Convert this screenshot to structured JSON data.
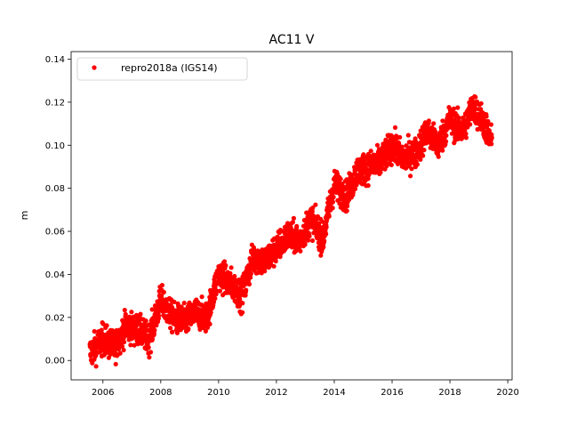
{
  "chart_data": {
    "type": "scatter",
    "title": "AC11 V",
    "xlabel": "",
    "ylabel": "m",
    "xlim": [
      2004.9,
      2020.15
    ],
    "ylim": [
      -0.009,
      0.1435
    ],
    "x_ticks": [
      2006,
      2008,
      2010,
      2012,
      2014,
      2016,
      2018,
      2020
    ],
    "x_tick_labels": [
      "2006",
      "2008",
      "2010",
      "2012",
      "2014",
      "2016",
      "2018",
      "2020"
    ],
    "y_ticks": [
      0.0,
      0.02,
      0.04,
      0.06,
      0.08,
      0.1,
      0.12,
      0.14
    ],
    "y_tick_labels": [
      "0.00",
      "0.02",
      "0.04",
      "0.06",
      "0.08",
      "0.10",
      "0.12",
      "0.14"
    ],
    "grid": false,
    "legend_position": "upper-left",
    "color": "#ff0000",
    "series": [
      {
        "name": "repro2018a (IGS14)",
        "x_range": [
          2005.55,
          2019.45
        ],
        "trend": {
          "x": [
            2005.6,
            2006.0,
            2006.4,
            2006.8,
            2007.2,
            2007.6,
            2008.0,
            2008.4,
            2008.8,
            2009.2,
            2009.6,
            2010.0,
            2010.4,
            2010.8,
            2011.2,
            2011.6,
            2012.0,
            2012.4,
            2012.8,
            2013.2,
            2013.6,
            2014.0,
            2014.4,
            2014.8,
            2015.2,
            2015.6,
            2016.0,
            2016.4,
            2016.8,
            2017.2,
            2017.6,
            2018.0,
            2018.4,
            2018.8,
            2019.2,
            2019.4
          ],
          "y": [
            0.004,
            0.01,
            0.006,
            0.016,
            0.014,
            0.01,
            0.028,
            0.02,
            0.018,
            0.022,
            0.02,
            0.04,
            0.036,
            0.03,
            0.048,
            0.046,
            0.052,
            0.058,
            0.056,
            0.066,
            0.056,
            0.082,
            0.076,
            0.088,
            0.09,
            0.092,
            0.1,
            0.094,
            0.096,
            0.106,
            0.1,
            0.112,
            0.106,
            0.118,
            0.11,
            0.102
          ]
        },
        "scatter_amplitude": 0.012
      }
    ]
  }
}
